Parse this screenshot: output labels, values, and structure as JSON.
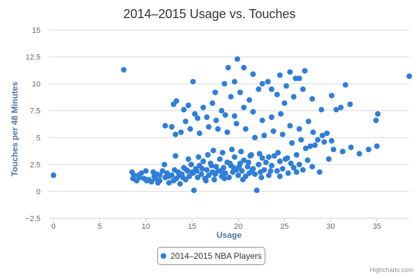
{
  "chart_data": {
    "type": "scatter",
    "title": "2014–2015 Usage vs. Touches",
    "xlabel": "Usage",
    "ylabel": "Touches per 48 Minutes",
    "xlim": [
      -0.5,
      38.5
    ],
    "ylim": [
      -2.5,
      15
    ],
    "xticks": [
      0,
      5,
      10,
      15,
      20,
      25,
      30,
      35
    ],
    "yticks": [
      -2.5,
      0,
      2.5,
      5,
      7.5,
      10,
      12.5,
      15
    ],
    "ytick_labels": [
      "−2.5",
      "0",
      "2.5",
      "5",
      "7.5",
      "10",
      "12.5",
      "15"
    ],
    "grid": "horizontal",
    "legend_position": "bottom-center",
    "series": [
      {
        "name": "2014–2015 NBA Players",
        "color": "#2f7ed8",
        "points": [
          [
            0,
            1.5
          ],
          [
            7.6,
            11.3
          ],
          [
            8.5,
            1.8
          ],
          [
            8.6,
            1.2
          ],
          [
            9.0,
            1.0
          ],
          [
            9.2,
            1.5
          ],
          [
            9.5,
            1.7
          ],
          [
            9.8,
            1.2
          ],
          [
            10.0,
            1.9
          ],
          [
            10.3,
            1.1
          ],
          [
            10.6,
            0.9
          ],
          [
            10.9,
            1.4
          ],
          [
            11.2,
            1.6
          ],
          [
            11.5,
            1.0
          ],
          [
            11.8,
            1.9
          ],
          [
            12.1,
            1.3
          ],
          [
            12.3,
            1.7
          ],
          [
            12.5,
            0.8
          ],
          [
            12.8,
            1.5
          ],
          [
            13.1,
            2.0
          ],
          [
            13.3,
            1.2
          ],
          [
            13.5,
            1.8
          ],
          [
            13.7,
            0.7
          ],
          [
            13.9,
            1.6
          ],
          [
            14.1,
            2.2
          ],
          [
            14.3,
            1.1
          ],
          [
            14.5,
            1.9
          ],
          [
            14.7,
            1.4
          ],
          [
            14.9,
            2.5
          ],
          [
            15.1,
            1.7
          ],
          [
            15.2,
            0.1
          ],
          [
            15.4,
            2.1
          ],
          [
            15.6,
            1.3
          ],
          [
            15.8,
            2.4
          ],
          [
            16.0,
            1.6
          ],
          [
            16.2,
            2.8
          ],
          [
            16.4,
            1.2
          ],
          [
            16.6,
            2.0
          ],
          [
            16.8,
            1.5
          ],
          [
            17.0,
            2.6
          ],
          [
            17.2,
            1.8
          ],
          [
            17.4,
            1.1
          ],
          [
            17.6,
            2.3
          ],
          [
            17.8,
            1.9
          ],
          [
            18.0,
            3.0
          ],
          [
            18.2,
            1.4
          ],
          [
            18.4,
            2.2
          ],
          [
            18.6,
            1.7
          ],
          [
            18.8,
            2.7
          ],
          [
            19.0,
            1.3
          ],
          [
            19.2,
            2.4
          ],
          [
            19.4,
            1.8
          ],
          [
            19.6,
            3.2
          ],
          [
            19.8,
            2.0
          ],
          [
            20.0,
            1.5
          ],
          [
            20.2,
            2.6
          ],
          [
            20.4,
            1.9
          ],
          [
            20.6,
            2.9
          ],
          [
            20.8,
            1.4
          ],
          [
            21.0,
            2.3
          ],
          [
            21.2,
            1.7
          ],
          [
            21.4,
            3.4
          ],
          [
            21.6,
            2.1
          ],
          [
            21.8,
            1.6
          ],
          [
            22.0,
            0.1
          ],
          [
            22.2,
            2.5
          ],
          [
            22.4,
            1.8
          ],
          [
            22.6,
            3.1
          ],
          [
            22.8,
            2.0
          ],
          [
            23.0,
            2.7
          ],
          [
            23.3,
            1.5
          ],
          [
            23.6,
            2.4
          ],
          [
            23.9,
            3.3
          ],
          [
            24.2,
            1.9
          ],
          [
            24.5,
            2.8
          ],
          [
            24.8,
            2.1
          ],
          [
            25.1,
            3.0
          ],
          [
            25.4,
            1.7
          ],
          [
            25.7,
            2.6
          ],
          [
            26.0,
            2.2
          ],
          [
            26.3,
            1.8
          ],
          [
            26.6,
            2.5
          ],
          [
            27.0,
            2.0
          ],
          [
            27.5,
            2.9
          ],
          [
            28.0,
            2.3
          ],
          [
            28.8,
            1.8
          ],
          [
            12.5,
            1.4
          ],
          [
            13.0,
            1.0
          ],
          [
            14.0,
            1.3
          ],
          [
            15.5,
            1.9
          ],
          [
            16.5,
            1.0
          ],
          [
            17.5,
            1.6
          ],
          [
            18.5,
            1.2
          ],
          [
            19.5,
            2.2
          ],
          [
            20.5,
            1.1
          ],
          [
            21.5,
            2.0
          ],
          [
            22.5,
            1.3
          ],
          [
            23.5,
            1.9
          ],
          [
            24.5,
            1.4
          ],
          [
            16.1,
            2.1
          ],
          [
            17.1,
            2.4
          ],
          [
            18.1,
            1.9
          ],
          [
            19.1,
            2.6
          ],
          [
            20.1,
            2.3
          ],
          [
            21.1,
            2.7
          ],
          [
            15.0,
            1.8
          ],
          [
            14.4,
            2.0
          ],
          [
            13.6,
            1.5
          ],
          [
            11.0,
            1.2
          ],
          [
            10.8,
            1.8
          ],
          [
            12.0,
            2.5
          ],
          [
            13.2,
            3.3
          ],
          [
            14.6,
            3.0
          ],
          [
            15.7,
            3.2
          ],
          [
            16.7,
            3.4
          ],
          [
            17.3,
            3.8
          ],
          [
            18.3,
            3.6
          ],
          [
            19.3,
            3.9
          ],
          [
            20.3,
            3.7
          ],
          [
            21.3,
            3.3
          ],
          [
            22.3,
            3.5
          ],
          [
            23.3,
            3.2
          ],
          [
            24.3,
            3.6
          ],
          [
            25.3,
            3.1
          ],
          [
            26.3,
            3.4
          ],
          [
            27.3,
            4.0
          ],
          [
            28.3,
            4.3
          ],
          [
            29.3,
            4.6
          ],
          [
            30.3,
            3.9
          ],
          [
            31.3,
            3.7
          ],
          [
            32.2,
            4.1
          ],
          [
            33.1,
            3.5
          ],
          [
            34.1,
            3.9
          ],
          [
            35.0,
            4.2
          ],
          [
            26.8,
            4.8
          ],
          [
            27.8,
            4.2
          ],
          [
            28.6,
            4.8
          ],
          [
            29.8,
            3.0
          ],
          [
            25.8,
            4.5
          ],
          [
            24.8,
            5.3
          ],
          [
            23.8,
            5.6
          ],
          [
            22.8,
            5.2
          ],
          [
            21.8,
            5.0
          ],
          [
            20.8,
            5.8
          ],
          [
            19.8,
            6.3
          ],
          [
            18.8,
            5.5
          ],
          [
            17.8,
            5.8
          ],
          [
            16.8,
            6.0
          ],
          [
            15.8,
            5.4
          ],
          [
            14.8,
            5.8
          ],
          [
            13.8,
            5.5
          ],
          [
            12.8,
            6.0
          ],
          [
            13.2,
            5.3
          ],
          [
            14.3,
            6.5
          ],
          [
            15.3,
            7.2
          ],
          [
            16.2,
            7.8
          ],
          [
            17.2,
            8.2
          ],
          [
            18.2,
            7.5
          ],
          [
            19.2,
            8.8
          ],
          [
            20.2,
            9.2
          ],
          [
            21.2,
            8.5
          ],
          [
            22.2,
            9.5
          ],
          [
            23.2,
            10.2
          ],
          [
            24.2,
            9.0
          ],
          [
            25.2,
            9.8
          ],
          [
            26.2,
            10.5
          ],
          [
            27.2,
            11.2
          ],
          [
            24.5,
            10.8
          ],
          [
            26.6,
            10.5
          ],
          [
            25.6,
            11.1
          ],
          [
            21.6,
            10.9
          ],
          [
            20.6,
            11.5
          ],
          [
            19.9,
            12.3
          ],
          [
            18.9,
            11.5
          ],
          [
            17.5,
            9.2
          ],
          [
            18.5,
            10.0
          ],
          [
            19.6,
            10.2
          ],
          [
            22.6,
            10.0
          ],
          [
            23.6,
            9.5
          ],
          [
            25.0,
            8.2
          ],
          [
            26.0,
            8.8
          ],
          [
            27.0,
            9.5
          ],
          [
            28.0,
            8.6
          ],
          [
            29.0,
            7.6
          ],
          [
            30.1,
            8.9
          ],
          [
            30.6,
            7.6
          ],
          [
            31.1,
            7.8
          ],
          [
            31.6,
            9.9
          ],
          [
            32.1,
            8.1
          ],
          [
            34.9,
            6.6
          ],
          [
            35.1,
            7.2
          ],
          [
            38.5,
            10.7
          ],
          [
            15.1,
            10.2
          ],
          [
            13.0,
            8.1
          ],
          [
            13.3,
            8.4
          ],
          [
            14.1,
            7.6
          ],
          [
            14.6,
            8.0
          ],
          [
            15.6,
            6.8
          ],
          [
            16.6,
            6.9
          ],
          [
            17.6,
            6.6
          ],
          [
            18.6,
            7.1
          ],
          [
            19.6,
            7.0
          ],
          [
            20.6,
            7.8
          ],
          [
            21.6,
            7.4
          ],
          [
            22.6,
            6.6
          ],
          [
            23.6,
            6.9
          ],
          [
            24.6,
            7.2
          ],
          [
            25.6,
            6.1
          ],
          [
            26.6,
            5.8
          ],
          [
            27.6,
            6.5
          ],
          [
            28.1,
            5.5
          ],
          [
            29.1,
            5.2
          ],
          [
            29.6,
            5.4
          ],
          [
            30.1,
            4.7
          ],
          [
            12.1,
            6.1
          ],
          [
            11.5,
            1.5
          ],
          [
            9.3,
            1.3
          ],
          [
            8.7,
            1.5
          ],
          [
            10.1,
            1.0
          ],
          [
            11.3,
            0.8
          ]
        ]
      }
    ]
  },
  "credits": "Highcharts.com"
}
